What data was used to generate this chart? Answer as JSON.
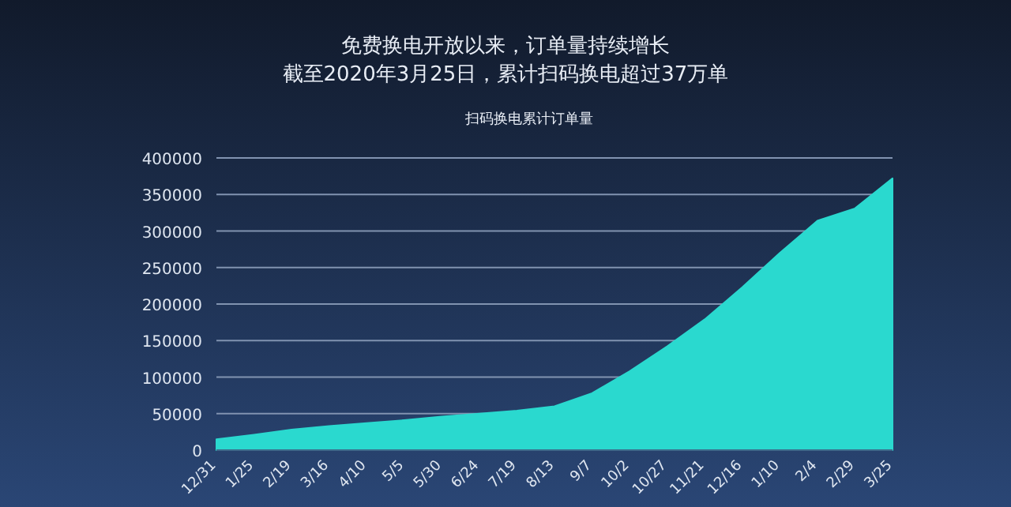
{
  "chart_data": {
    "type": "area",
    "title": "免费换电开放以来，订单量持续增长",
    "subtitle": "截至2020年3月25日，累计扫码换电超过37万单",
    "annotations": [
      "扫码换电累计订单量"
    ],
    "categories": [
      "12/31",
      "1/25",
      "2/19",
      "3/16",
      "4/10",
      "5/5",
      "5/30",
      "6/24",
      "7/19",
      "8/13",
      "9/7",
      "10/2",
      "10/27",
      "11/21",
      "12/16",
      "1/10",
      "2/4",
      "2/29",
      "3/25"
    ],
    "series": [
      {
        "color": "#2ad9cf",
        "values": [
          15000,
          21000,
          28000,
          33000,
          37000,
          41000,
          46000,
          50000,
          54000,
          60000,
          78000,
          108000,
          142000,
          179000,
          223000,
          270000,
          314000,
          331000,
          372000
        ]
      }
    ],
    "ylim": [
      0,
      400000
    ],
    "yticks": [
      0,
      50000,
      100000,
      150000,
      200000,
      250000,
      300000,
      350000,
      400000
    ],
    "grid": "y"
  }
}
